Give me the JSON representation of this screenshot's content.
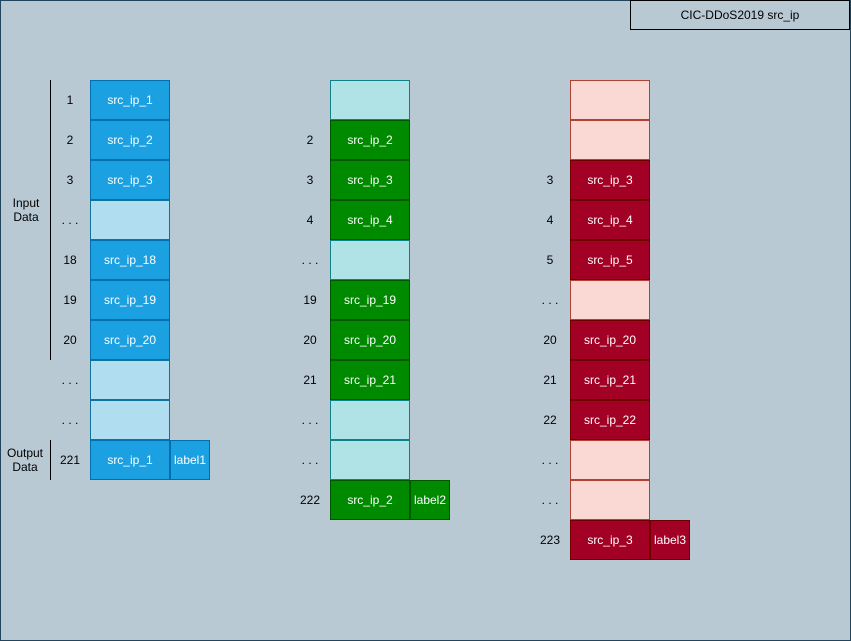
{
  "title": "CIC-DDoS2019 src_ip",
  "side_labels": {
    "input": "Input\nData",
    "output": "Output\nData"
  },
  "colors": {
    "blue_filled": "#1ba1e2",
    "blue_filled_border": "#006eaf",
    "blue_empty": "#b1ddf0",
    "blue_empty_border": "#10739e",
    "green_filled": "#008a00",
    "green_filled_border": "#005700",
    "green_empty": "#b0e3e6",
    "green_empty_border": "#0e8088",
    "red_filled": "#a20025",
    "red_filled_border": "#6f0000",
    "red_empty": "#fad9d5",
    "red_empty_border": "#ae4132"
  },
  "columns": [
    {
      "theme": "blue",
      "rows": [
        {
          "index": "1",
          "text": "src_ip_1"
        },
        {
          "index": "2",
          "text": "src_ip_2"
        },
        {
          "index": "3",
          "text": "src_ip_3"
        },
        {
          "index": ". . .",
          "text": ""
        },
        {
          "index": "18",
          "text": "src_ip_18"
        },
        {
          "index": "19",
          "text": "src_ip_19"
        },
        {
          "index": "20",
          "text": "src_ip_20"
        },
        {
          "index": ". . .",
          "text": ""
        },
        {
          "index": ". . .",
          "text": ""
        },
        {
          "index": "221",
          "text": "src_ip_1",
          "label": "label1"
        }
      ]
    },
    {
      "theme": "green",
      "rows": [
        {
          "index": "",
          "text": ""
        },
        {
          "index": "2",
          "text": "src_ip_2"
        },
        {
          "index": "3",
          "text": "src_ip_3"
        },
        {
          "index": "4",
          "text": "src_ip_4"
        },
        {
          "index": ". . .",
          "text": ""
        },
        {
          "index": "19",
          "text": "src_ip_19"
        },
        {
          "index": "20",
          "text": "src_ip_20"
        },
        {
          "index": "21",
          "text": "src_ip_21"
        },
        {
          "index": ". . .",
          "text": ""
        },
        {
          "index": ". . .",
          "text": ""
        },
        {
          "index": "222",
          "text": "src_ip_2",
          "label": "label2"
        }
      ]
    },
    {
      "theme": "red",
      "rows": [
        {
          "index": "",
          "text": ""
        },
        {
          "index": "",
          "text": ""
        },
        {
          "index": "3",
          "text": "src_ip_3"
        },
        {
          "index": "4",
          "text": "src_ip_4"
        },
        {
          "index": "5",
          "text": "src_ip_5"
        },
        {
          "index": ". . .",
          "text": ""
        },
        {
          "index": "20",
          "text": "src_ip_20"
        },
        {
          "index": "21",
          "text": "src_ip_21"
        },
        {
          "index": "22",
          "text": "src_ip_22"
        },
        {
          "index": ". . .",
          "text": ""
        },
        {
          "index": ". . .",
          "text": ""
        },
        {
          "index": "223",
          "text": "src_ip_3",
          "label": "label3"
        }
      ]
    }
  ]
}
